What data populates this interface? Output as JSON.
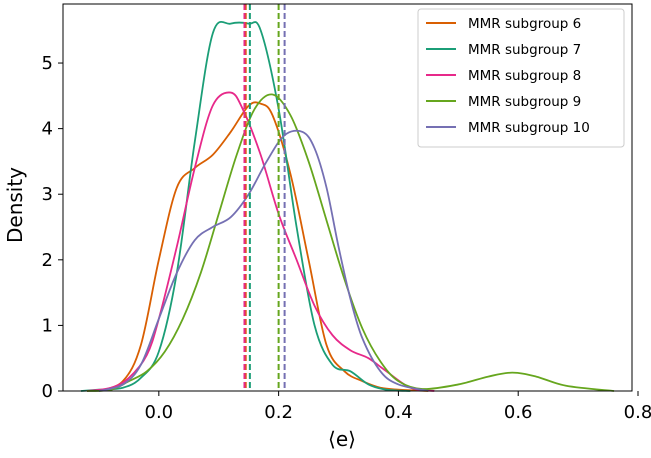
{
  "chart_data": {
    "type": "line",
    "title": "",
    "xlabel": "⟨e⟩",
    "ylabel": "Density",
    "xlim": [
      -0.16,
      0.79
    ],
    "ylim": [
      0,
      5.9
    ],
    "xticks": [
      0.0,
      0.2,
      0.4,
      0.6,
      0.8
    ],
    "xtick_labels": [
      "0.0",
      "0.2",
      "0.4",
      "0.6",
      "0.8"
    ],
    "yticks": [
      0,
      1,
      2,
      3,
      4,
      5
    ],
    "ytick_labels": [
      "0",
      "1",
      "2",
      "3",
      "4",
      "5"
    ],
    "grid": false,
    "legend_position": "top-right",
    "series": [
      {
        "name": "MMR subgroup 6",
        "color": "#d95f02",
        "mean": 0.145,
        "x": [
          -0.1,
          -0.06,
          -0.03,
          0.0,
          0.03,
          0.06,
          0.09,
          0.12,
          0.15,
          0.17,
          0.19,
          0.22,
          0.25,
          0.28,
          0.31,
          0.34,
          0.37,
          0.4,
          0.45
        ],
        "y": [
          0.0,
          0.15,
          0.7,
          2.0,
          3.1,
          3.4,
          3.6,
          3.95,
          4.35,
          4.38,
          4.2,
          3.3,
          2.0,
          0.7,
          0.3,
          0.15,
          0.05,
          0.02,
          0.0
        ]
      },
      {
        "name": "MMR subgroup 7",
        "color": "#1b9e77",
        "mean": 0.152,
        "x": [
          -0.13,
          -0.1,
          -0.06,
          -0.03,
          0.0,
          0.03,
          0.06,
          0.09,
          0.12,
          0.15,
          0.17,
          0.2,
          0.23,
          0.26,
          0.29,
          0.32,
          0.35,
          0.38,
          0.42
        ],
        "y": [
          0.0,
          0.02,
          0.05,
          0.2,
          0.6,
          1.8,
          3.8,
          5.45,
          5.6,
          5.6,
          5.5,
          4.3,
          2.5,
          1.0,
          0.4,
          0.3,
          0.1,
          0.02,
          0.0
        ]
      },
      {
        "name": "MMR subgroup 8",
        "color": "#e7298a",
        "mean": 0.143,
        "x": [
          -0.12,
          -0.08,
          -0.05,
          -0.02,
          0.0,
          0.03,
          0.06,
          0.09,
          0.12,
          0.14,
          0.17,
          0.2,
          0.23,
          0.26,
          0.29,
          0.32,
          0.35,
          0.38,
          0.42,
          0.46
        ],
        "y": [
          0.0,
          0.05,
          0.2,
          0.55,
          1.1,
          2.2,
          3.4,
          4.35,
          4.55,
          4.3,
          3.6,
          2.7,
          2.0,
          1.3,
          0.85,
          0.62,
          0.5,
          0.3,
          0.05,
          0.0
        ]
      },
      {
        "name": "MMR subgroup 9",
        "color": "#66a61e",
        "mean": 0.2,
        "x": [
          -0.12,
          -0.08,
          -0.05,
          -0.02,
          0.01,
          0.04,
          0.07,
          0.1,
          0.13,
          0.16,
          0.19,
          0.22,
          0.25,
          0.28,
          0.31,
          0.34,
          0.37,
          0.4,
          0.44,
          0.5,
          0.55,
          0.59,
          0.63,
          0.68,
          0.76
        ],
        "y": [
          0.0,
          0.02,
          0.15,
          0.3,
          0.6,
          1.1,
          1.8,
          2.7,
          3.6,
          4.3,
          4.52,
          4.2,
          3.5,
          2.6,
          1.7,
          0.95,
          0.45,
          0.15,
          0.03,
          0.1,
          0.22,
          0.28,
          0.22,
          0.08,
          0.0
        ]
      },
      {
        "name": "MMR subgroup 10",
        "color": "#7570b3",
        "mean": 0.21,
        "x": [
          -0.1,
          -0.06,
          -0.03,
          0.0,
          0.03,
          0.06,
          0.09,
          0.12,
          0.15,
          0.18,
          0.21,
          0.24,
          0.26,
          0.28,
          0.3,
          0.32,
          0.34,
          0.37,
          0.4,
          0.45
        ],
        "y": [
          0.0,
          0.1,
          0.4,
          1.1,
          1.8,
          2.3,
          2.5,
          2.65,
          3.0,
          3.5,
          3.9,
          3.95,
          3.7,
          3.1,
          2.2,
          1.4,
          0.8,
          0.3,
          0.1,
          0.0
        ]
      }
    ]
  }
}
